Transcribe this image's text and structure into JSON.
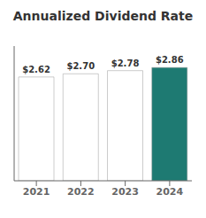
{
  "chart_data": {
    "type": "bar",
    "title": "Annualized Dividend Rate",
    "categories": [
      "2021",
      "2022",
      "2023",
      "2024"
    ],
    "values": [
      2.62,
      2.7,
      2.78,
      2.86
    ],
    "value_labels": [
      "$2.62",
      "$2.70",
      "$2.78",
      "$2.86"
    ],
    "colors": [
      "#ffffff",
      "#ffffff",
      "#ffffff",
      "#1e7a72"
    ],
    "ylim": [
      0,
      3.4
    ],
    "data_labels": true,
    "tick_labels": "x",
    "grid": false
  }
}
